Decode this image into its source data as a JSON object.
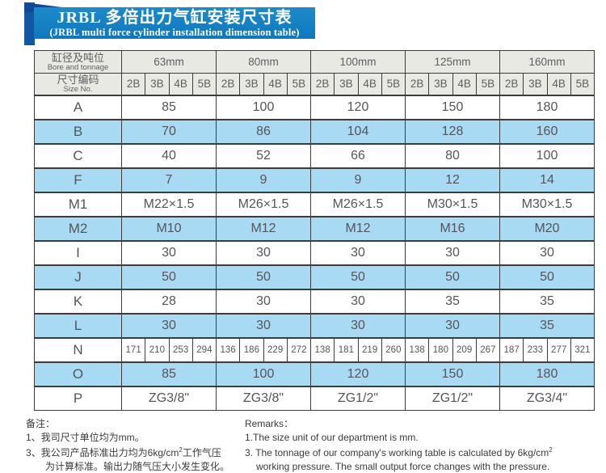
{
  "title": {
    "cn": "JRBL 多倍出力气缸安装尺寸表",
    "en": "(JRBL multi force cylinder installation dimension table)"
  },
  "colors": {
    "banner_blue": "#1480c3",
    "ribbon_blue": "#1256a4",
    "row_blue": "#a9daf3",
    "header_gray": "#e9e9e4",
    "border": "#3c3c3c"
  },
  "table": {
    "header": {
      "bore_cn": "缸径及吨位",
      "bore_en": "Bore and tonnage",
      "size_cn": "尺寸编码",
      "size_en": "Size No."
    },
    "groups": [
      "63mm",
      "80mm",
      "100mm",
      "125mm",
      "160mm"
    ],
    "codes": [
      "2B",
      "3B",
      "4B",
      "5B"
    ],
    "rows": [
      {
        "label": "A",
        "values": [
          "85",
          "100",
          "120",
          "150",
          "180"
        ]
      },
      {
        "label": "B",
        "values": [
          "70",
          "86",
          "104",
          "128",
          "160"
        ]
      },
      {
        "label": "C",
        "values": [
          "40",
          "52",
          "66",
          "80",
          "100"
        ]
      },
      {
        "label": "F",
        "values": [
          "7",
          "9",
          "9",
          "12",
          "14"
        ]
      },
      {
        "label": "M1",
        "values": [
          "M22×1.5",
          "M26×1.5",
          "M26×1.5",
          "M30×1.5",
          "M30×1.5"
        ]
      },
      {
        "label": "M2",
        "values": [
          "M10",
          "M12",
          "M12",
          "M16",
          "M20"
        ]
      },
      {
        "label": "I",
        "values": [
          "30",
          "30",
          "30",
          "30",
          "30"
        ]
      },
      {
        "label": "J",
        "values": [
          "50",
          "50",
          "50",
          "50",
          "50"
        ]
      },
      {
        "label": "K",
        "values": [
          "28",
          "30",
          "30",
          "35",
          "35"
        ]
      },
      {
        "label": "L",
        "values": [
          "30",
          "30",
          "30",
          "30",
          "35"
        ]
      },
      {
        "label": "N",
        "split": true,
        "values": [
          [
            "171",
            "210",
            "253",
            "294"
          ],
          [
            "136",
            "186",
            "229",
            "272"
          ],
          [
            "138",
            "181",
            "219",
            "260"
          ],
          [
            "138",
            "180",
            "209",
            "267"
          ],
          [
            "187",
            "233",
            "277",
            "321"
          ]
        ]
      },
      {
        "label": "O",
        "values": [
          "85",
          "100",
          "120",
          "150",
          "180"
        ]
      },
      {
        "label": "P",
        "values": [
          "ZG3/8\"",
          "ZG3/8\"",
          "ZG1/2\"",
          "ZG1/2\"",
          "ZG3/4\""
        ]
      }
    ]
  },
  "notes_cn": {
    "heading": "备注：",
    "line1": "1、我司尺寸单位均为mm。",
    "line2_pre": "3、我公司产品标准出力均为6kg/cm",
    "line2_sup": "2",
    "line2_post": "工作气压",
    "line3": "为计算标准。输出力随气压大小发生变化。"
  },
  "notes_en": {
    "heading": "Remarks：",
    "line1": "1.The size unit of our department is mm.",
    "line2_pre": "3. The tonnage of our company's working table is calculated by 6kg/cm",
    "line2_sup": "2",
    "line3": "working pressure. The small output force changes with the pressure."
  }
}
